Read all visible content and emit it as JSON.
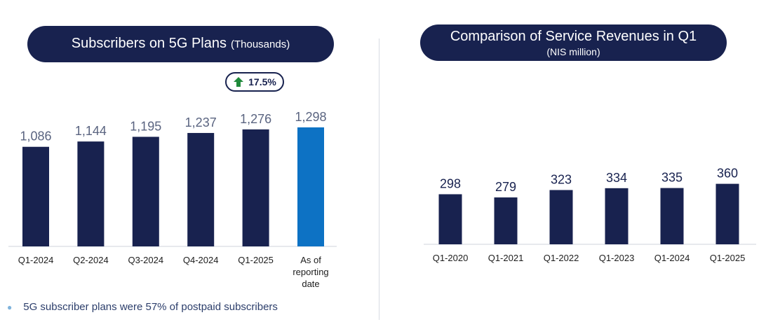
{
  "left_title": {
    "main": "Subscribers on 5G Plans",
    "unit": "(Thousands)"
  },
  "right_title": {
    "main": "Comparison of Service Revenues in Q1",
    "unit": "(NIS million)"
  },
  "growth_badge": {
    "icon": "arrow-up-icon",
    "text": "17.5%"
  },
  "footnote": "5G subscriber plans were 57% of postpaid subscribers",
  "colors": {
    "dark_bar": "#18224f",
    "highlight_bar": "#0d72c4",
    "badge_arrow": "#1f8a3b"
  },
  "chart_data": [
    {
      "type": "bar",
      "title": "Subscribers on 5G Plans",
      "categories": [
        "Q1-2024",
        "Q2-2024",
        "Q3-2024",
        "Q4-2024",
        "Q1-2025",
        "As of reporting date"
      ],
      "values": [
        1086,
        1144,
        1195,
        1237,
        1276,
        1298
      ],
      "value_labels": [
        "1,086",
        "1,144",
        "1,195",
        "1,237",
        "1,276",
        "1,298"
      ],
      "highlight_index": 5,
      "ylim": [
        0,
        1400
      ]
    },
    {
      "type": "bar",
      "title": "Comparison of Service Revenues in Q1",
      "categories": [
        "Q1-2020",
        "Q1-2021",
        "Q1-2022",
        "Q1-2023",
        "Q1-2024",
        "Q1-2025"
      ],
      "values": [
        298,
        279,
        323,
        334,
        335,
        360
      ],
      "value_labels": [
        "298",
        "279",
        "323",
        "334",
        "335",
        "360"
      ],
      "ylim": [
        0,
        1000
      ]
    }
  ]
}
